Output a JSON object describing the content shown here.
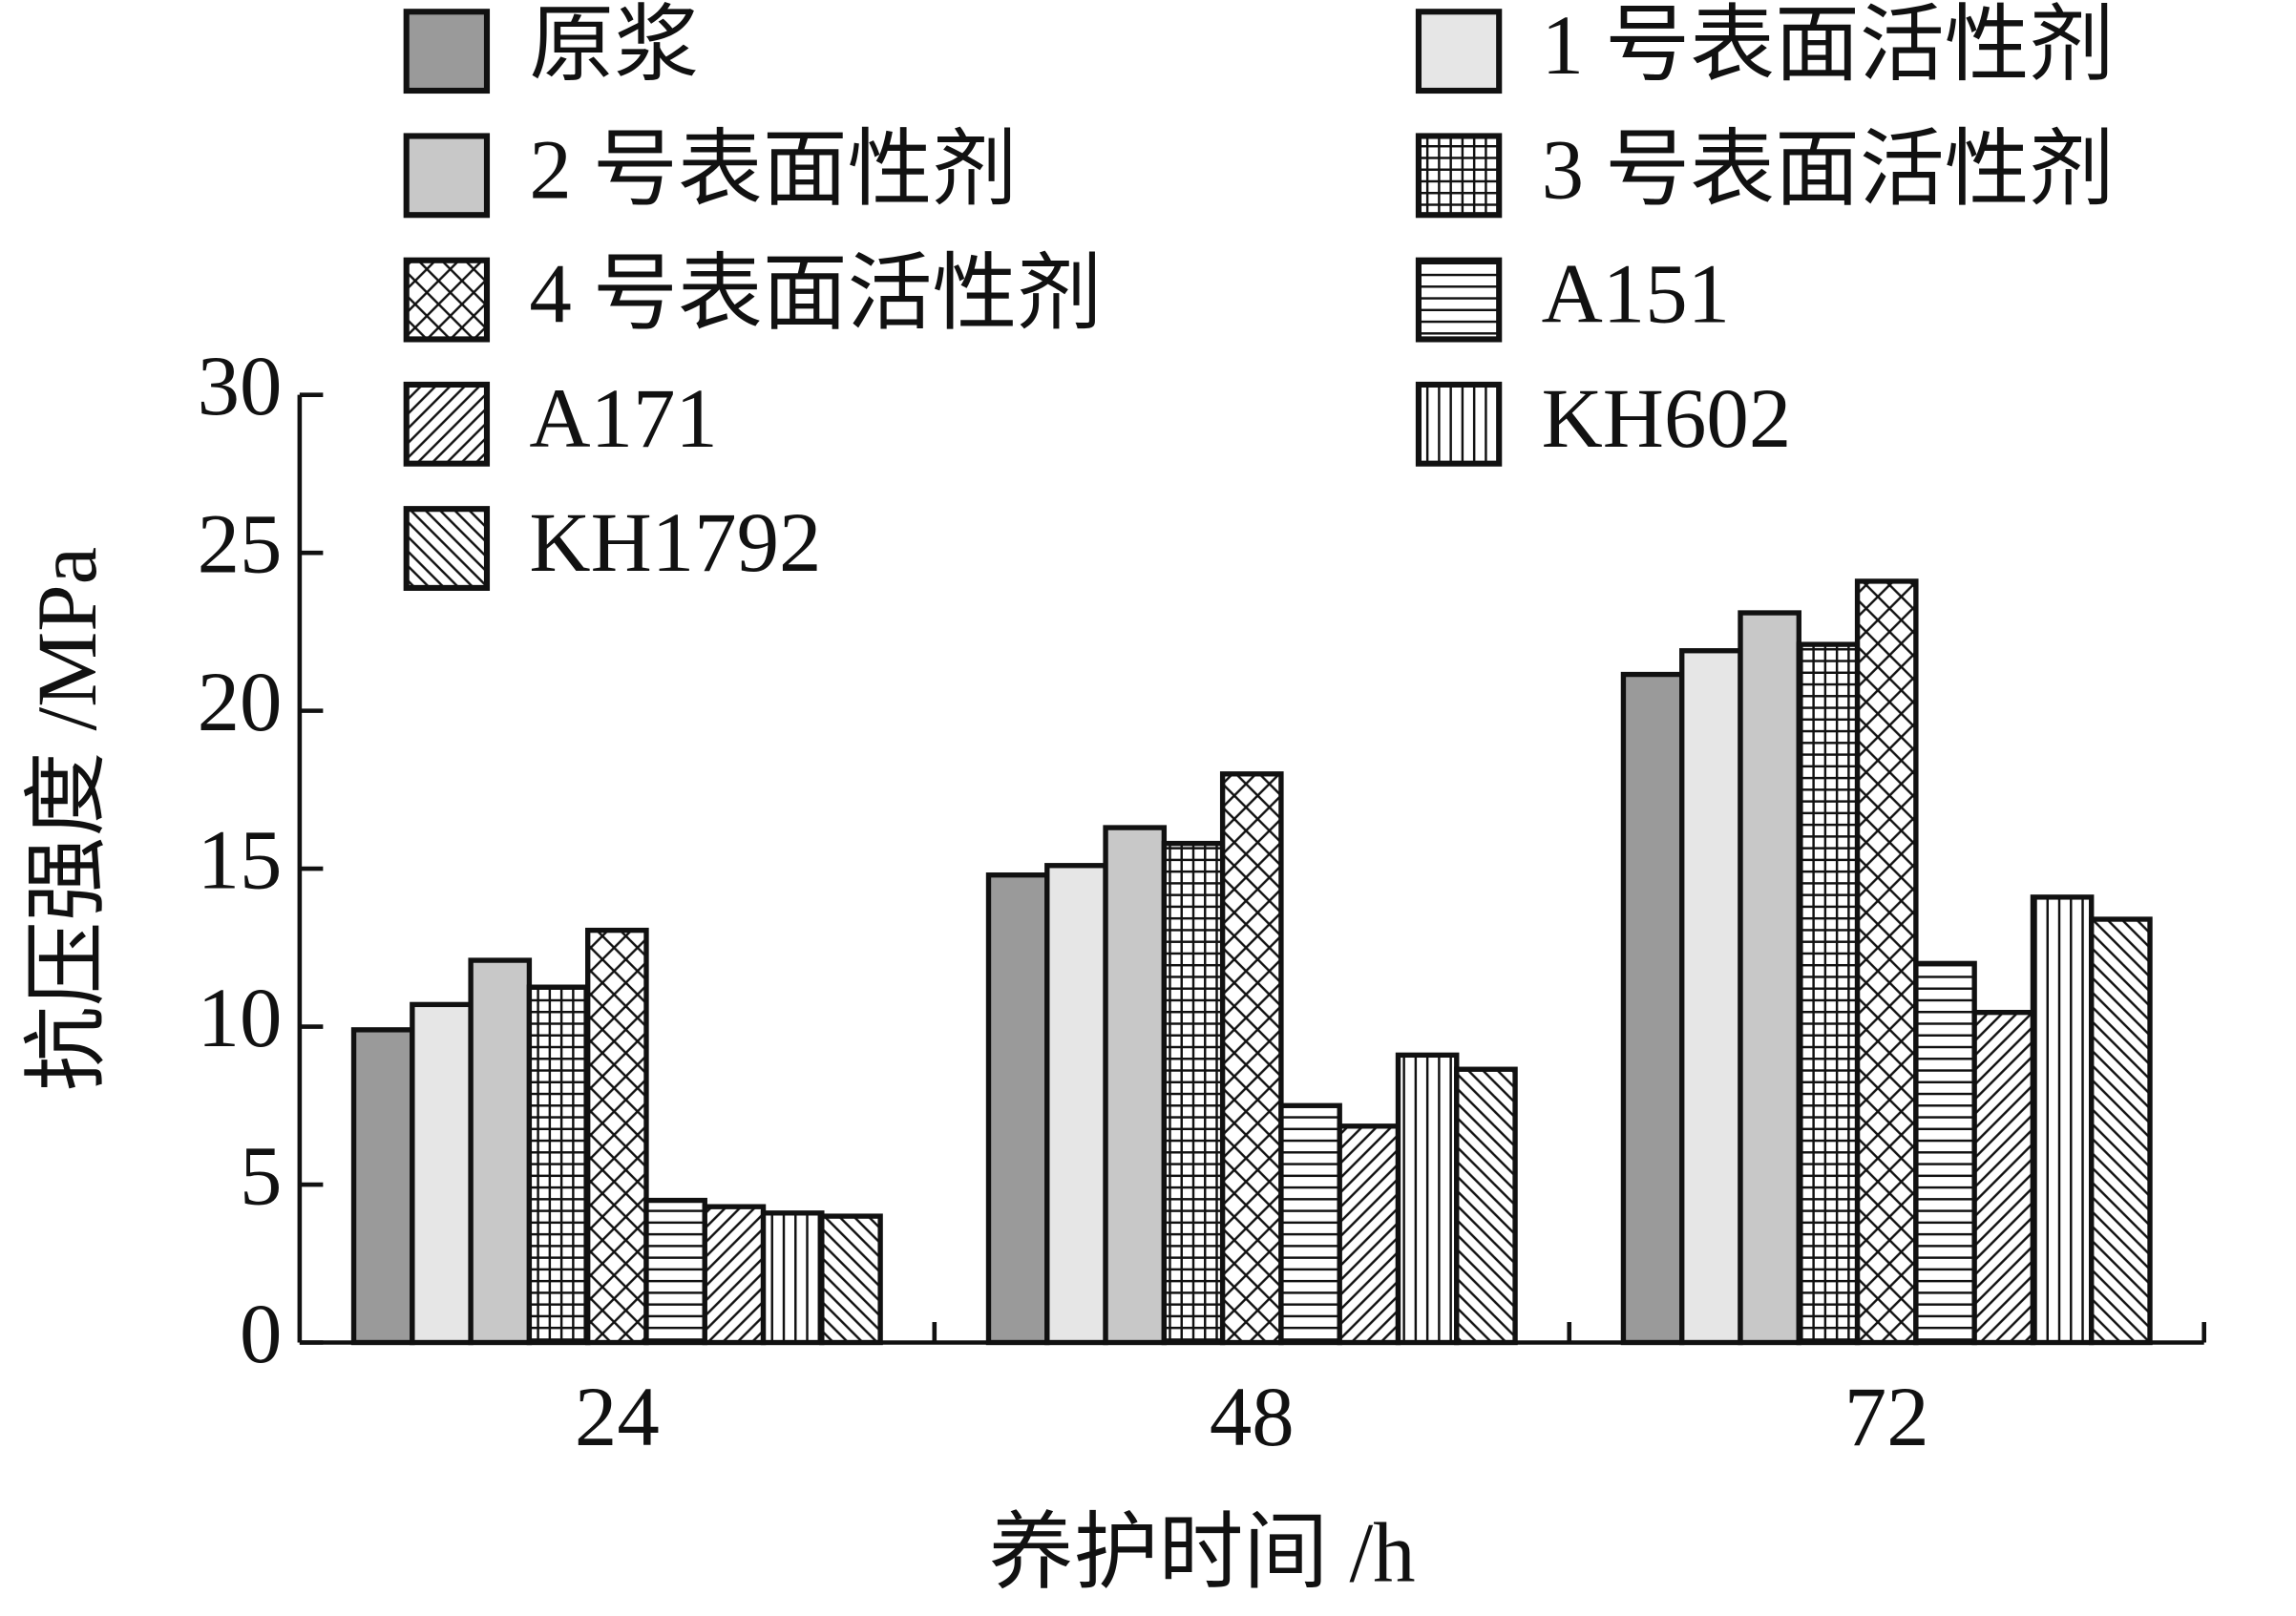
{
  "chart_data": {
    "type": "bar",
    "x_label": "养护时间 /h",
    "y_label": "抗压强度 /MPa",
    "categories": [
      "24",
      "48",
      "72"
    ],
    "ylim": [
      0,
      30
    ],
    "yticks": [
      0,
      5,
      10,
      15,
      20,
      25,
      30
    ],
    "legend": "top",
    "series": [
      {
        "name": "原浆",
        "color": "#9a9a9a",
        "hatch": "none",
        "values": [
          9.9,
          14.8,
          21.15
        ]
      },
      {
        "name": "1 号表面活性剂",
        "color": "#e6e6e6",
        "hatch": "none",
        "values": [
          10.7,
          15.1,
          21.9
        ]
      },
      {
        "name": "2 号表面性剂",
        "color": "#c8c8c8",
        "hatch": "none",
        "values": [
          12.1,
          16.3,
          23.1
        ]
      },
      {
        "name": "3 号表面活性剂",
        "color": "#ffffff",
        "hatch": "grid",
        "values": [
          11.25,
          15.8,
          22.1
        ]
      },
      {
        "name": "4 号表面活性剂",
        "color": "#ffffff",
        "hatch": "cross",
        "values": [
          13.05,
          18.0,
          24.1
        ]
      },
      {
        "name": "A151",
        "color": "#ffffff",
        "hatch": "horizontal",
        "values": [
          4.5,
          7.5,
          12.0
        ]
      },
      {
        "name": "A171",
        "color": "#ffffff",
        "hatch": "slash",
        "values": [
          4.3,
          6.85,
          10.45
        ]
      },
      {
        "name": "KH602",
        "color": "#ffffff",
        "hatch": "vertical",
        "values": [
          4.1,
          9.1,
          14.1
        ]
      },
      {
        "name": "KH1792",
        "color": "#ffffff",
        "hatch": "backslash",
        "values": [
          4.0,
          8.65,
          13.4
        ]
      }
    ]
  }
}
